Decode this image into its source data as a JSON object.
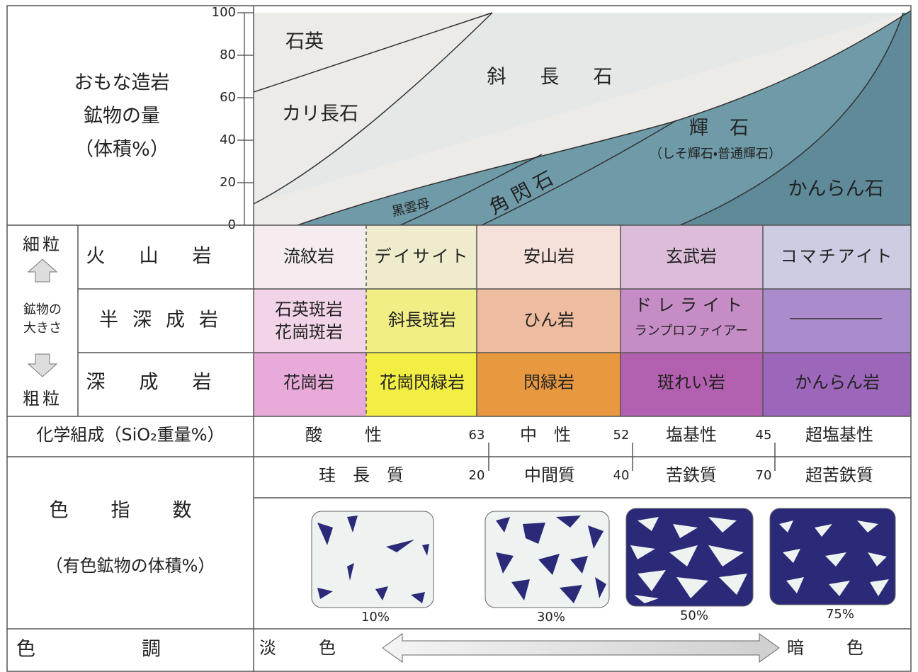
{
  "mineral_chart": {
    "title": [
      "おもな造岩",
      "鉱物の量",
      "（体積%）"
    ],
    "yticks": [
      100,
      80,
      60,
      40,
      20,
      0
    ],
    "minerals": {
      "quartz": "石英",
      "k_feldspar": "カリ長石",
      "plagioclase": "斜長石",
      "pyroxene": "輝石",
      "pyroxene_note": "（しそ輝石・普通輝石）",
      "amphibole": "角閃石",
      "biotite": "黒雲母",
      "olivine": "かんらん石"
    }
  },
  "grain_size": {
    "fine": "細粒",
    "label": [
      "鉱物の",
      "大きさ"
    ],
    "coarse": "粗粒"
  },
  "rock_table": {
    "rows": [
      {
        "name": "火山岩",
        "rocks": [
          [
            "流紋岩"
          ],
          [
            "デイサイト"
          ],
          [
            "安山岩"
          ],
          [
            "玄武岩"
          ],
          [
            "コマチアイト"
          ]
        ]
      },
      {
        "name": "半深成岩",
        "rocks": [
          [
            "石英斑岩",
            "花崗斑岩"
          ],
          [
            "斜長斑岩"
          ],
          [
            "ひん岩"
          ],
          [
            "ドレライト",
            "ランプロファイアー"
          ],
          []
        ]
      },
      {
        "name": "深成岩",
        "rocks": [
          [
            "花崗岩"
          ],
          [
            "花崗閃緑岩"
          ],
          [
            "閃緑岩"
          ],
          [
            "斑れい岩"
          ],
          [
            "かんらん岩"
          ]
        ]
      }
    ]
  },
  "chemical_composition": {
    "label": "化学組成（SiO₂重量%）",
    "classes": [
      "酸性",
      "中性",
      "塩基性",
      "超塩基性"
    ],
    "boundaries": [
      63,
      52,
      45
    ]
  },
  "color_index": {
    "label": "色指数",
    "sublabel": "（有色鉱物の体積%）",
    "classes": [
      "珪長質",
      "中間質",
      "苦鉄質",
      "超苦鉄質"
    ],
    "boundaries": [
      20,
      40,
      70
    ],
    "samples": [
      "10%",
      "30%",
      "50%",
      "75%"
    ]
  },
  "color_tone": {
    "label": "色調",
    "light": "淡色",
    "dark": "暗色"
  }
}
